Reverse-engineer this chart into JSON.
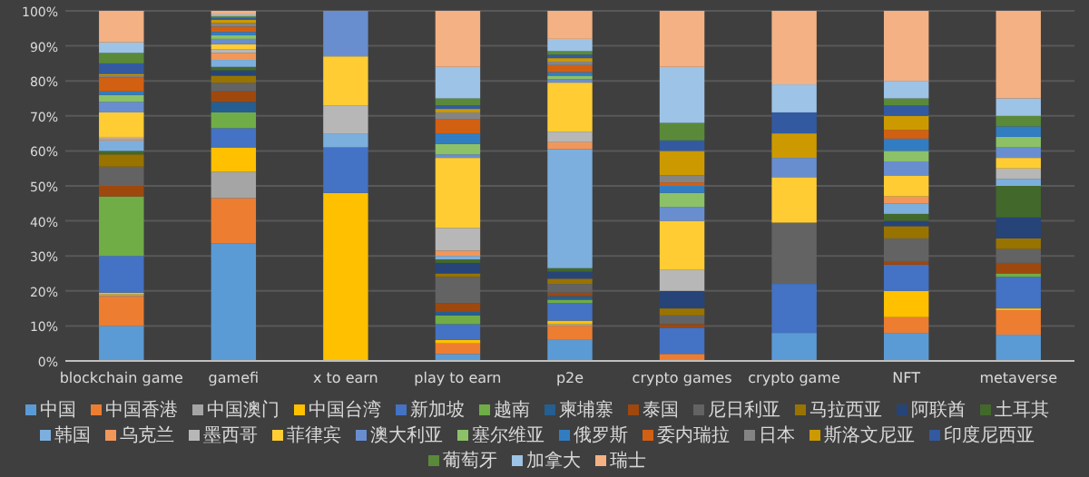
{
  "chart_data": {
    "type": "bar",
    "stacked": true,
    "grid": "y",
    "legend": "bottom",
    "categories": [
      "blockchain game",
      "gamefi",
      "x to earn",
      "play to earn",
      "p2e",
      "crypto games",
      "crypto game",
      "NFT",
      "metaverse"
    ],
    "ylim": [
      0,
      100
    ],
    "yticks": [
      {
        "value": 0,
        "label": "0%"
      },
      {
        "value": 10,
        "label": "10%"
      },
      {
        "value": 20,
        "label": "20%"
      },
      {
        "value": 30,
        "label": "30%"
      },
      {
        "value": 40,
        "label": "40%"
      },
      {
        "value": 50,
        "label": "50%"
      },
      {
        "value": 60,
        "label": "60%"
      },
      {
        "value": 70,
        "label": "70%"
      },
      {
        "value": 80,
        "label": "80%"
      },
      {
        "value": 90,
        "label": "90%"
      },
      {
        "value": 100,
        "label": "100%"
      }
    ],
    "series": [
      {
        "name": "中国",
        "color": "#5b9bd5",
        "values": [
          10,
          33.5,
          0,
          2,
          6,
          0,
          8,
          8,
          7.5
        ]
      },
      {
        "name": "中国香港",
        "color": "#ed7d31",
        "values": [
          8.5,
          13,
          0,
          3,
          4,
          2,
          0,
          4.5,
          7
        ]
      },
      {
        "name": "中国澳门",
        "color": "#a5a5a5",
        "values": [
          0.5,
          7.5,
          0,
          0,
          0.5,
          0,
          0,
          0,
          0
        ]
      },
      {
        "name": "中国台湾",
        "color": "#ffc000",
        "values": [
          0.5,
          7,
          48,
          1,
          1,
          0,
          0,
          7.5,
          0.5
        ]
      },
      {
        "name": "新加坡",
        "color": "#4472c4",
        "values": [
          10.5,
          5.5,
          13,
          4.5,
          5,
          7.5,
          14,
          7.5,
          9
        ]
      },
      {
        "name": "越南",
        "color": "#70ad47",
        "values": [
          17,
          4.5,
          0,
          2.5,
          1,
          0,
          0,
          0,
          1
        ]
      },
      {
        "name": "柬埔寨",
        "color": "#255e91",
        "values": [
          0,
          3,
          0,
          1,
          1,
          null,
          0,
          0,
          0
        ]
      },
      {
        "name": "泰国",
        "color": "#9e480e",
        "values": [
          3,
          3,
          0,
          2.5,
          1,
          1,
          0,
          1,
          3
        ]
      },
      {
        "name": "尼日利亚",
        "color": "#636363",
        "values": [
          5.5,
          2.5,
          0,
          7.5,
          2.5,
          2.5,
          17.5,
          6.5,
          4
        ]
      },
      {
        "name": "马拉西亚",
        "color": "#997300",
        "values": [
          3.5,
          2,
          0,
          1,
          1.5,
          2,
          0,
          3.5,
          3
        ]
      },
      {
        "name": "阿联酋",
        "color": "#264478",
        "values": [
          null,
          1.5,
          0,
          3,
          2,
          5,
          0,
          1.5,
          6
        ]
      },
      {
        "name": "土耳其",
        "color": "#43682b",
        "values": [
          1,
          1,
          0,
          1,
          1,
          null,
          0,
          2,
          9
        ]
      },
      {
        "name": "韩国",
        "color": "#7cafdd",
        "values": [
          3,
          2,
          4,
          1,
          34,
          0,
          0,
          3,
          2
        ]
      },
      {
        "name": "乌克兰",
        "color": "#f1975a",
        "values": [
          0.5,
          2,
          0,
          1.5,
          2,
          0,
          0,
          2,
          0
        ]
      },
      {
        "name": "墨西哥",
        "color": "#b7b7b7",
        "values": [
          0.5,
          1,
          8,
          6.5,
          3,
          6,
          0,
          0,
          3
        ]
      },
      {
        "name": "菲律宾",
        "color": "#ffcd33",
        "values": [
          7,
          1.5,
          14,
          20,
          14,
          14,
          13,
          6,
          3
        ]
      },
      {
        "name": "澳大利亚",
        "color": "#698ed0",
        "values": [
          3,
          1.5,
          13,
          1,
          1,
          4,
          5.5,
          4,
          3
        ]
      },
      {
        "name": "塞尔维亚",
        "color": "#8cc168",
        "values": [
          2,
          1,
          0,
          3,
          1,
          4,
          0,
          3,
          3
        ]
      },
      {
        "name": "俄罗斯",
        "color": "#327dc2",
        "values": [
          1,
          1,
          0,
          3,
          1,
          2,
          0,
          3.5,
          3
        ]
      },
      {
        "name": "委内瑞拉",
        "color": "#d26012",
        "values": [
          4,
          1.5,
          0,
          4,
          2,
          1,
          0,
          2.5,
          0
        ]
      },
      {
        "name": "日本",
        "color": "#848484",
        "values": [
          0.5,
          1,
          0,
          2,
          1,
          2,
          0,
          0,
          0
        ]
      },
      {
        "name": "斯洛文尼亚",
        "color": "#cc9a00",
        "values": [
          0.5,
          1,
          0,
          1,
          1,
          7,
          7,
          4,
          0
        ]
      },
      {
        "name": "印度尼西亚",
        "color": "#335aa1",
        "values": [
          3,
          0.5,
          0,
          1,
          1,
          3,
          6,
          3,
          0
        ]
      },
      {
        "name": "葡萄牙",
        "color": "#5a8a39",
        "values": [
          3,
          0.5,
          0,
          2,
          1,
          5,
          0,
          2,
          3
        ]
      },
      {
        "name": "加拿大",
        "color": "#9dc3e6",
        "values": [
          3,
          0.5,
          0,
          9,
          3.5,
          16,
          8,
          5,
          5
        ]
      },
      {
        "name": "瑞士",
        "color": "#f4b183",
        "values": [
          9,
          1,
          0,
          16,
          8,
          16,
          21,
          20,
          25
        ]
      }
    ]
  }
}
